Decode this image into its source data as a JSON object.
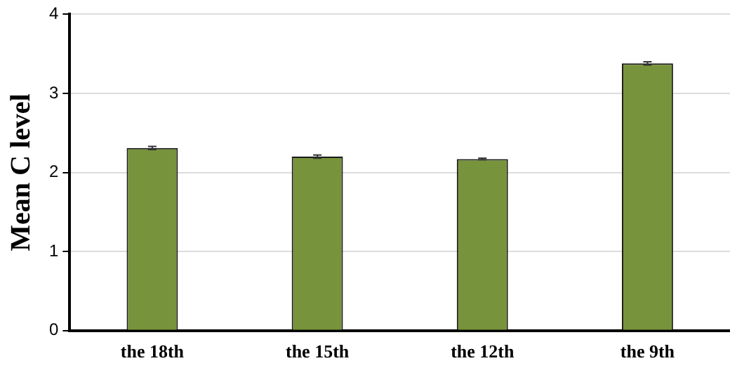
{
  "chart_data": {
    "type": "bar",
    "ylabel": "Mean C level",
    "categories": [
      "the 18th",
      "the 15th",
      "the 12th",
      "the 9th"
    ],
    "values": [
      2.31,
      2.2,
      2.17,
      3.38
    ],
    "errors": [
      0.02,
      0.02,
      0.01,
      0.02
    ],
    "color": "#77933c",
    "ylim": [
      0,
      4
    ],
    "yticks": [
      0,
      1,
      2,
      3,
      4
    ],
    "grid": "y",
    "legend": false
  }
}
